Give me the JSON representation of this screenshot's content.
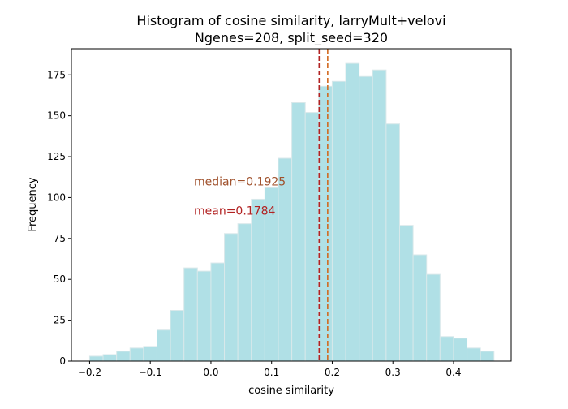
{
  "chart_data": {
    "type": "bar",
    "title": "Histogram of cosine similarity, larryMult+velovi",
    "subtitle": "Ngenes=208, split_seed=320",
    "xlabel": "cosine similarity",
    "ylabel": "Frequency",
    "xlim": [
      -0.23,
      0.495
    ],
    "ylim": [
      0,
      191
    ],
    "x_ticks": [
      -0.2,
      -0.1,
      0.0,
      0.1,
      0.2,
      0.3,
      0.4
    ],
    "x_tick_labels": [
      "−0.2",
      "−0.1",
      "0.0",
      "0.1",
      "0.2",
      "0.3",
      "0.4"
    ],
    "y_ticks": [
      0,
      25,
      50,
      75,
      100,
      125,
      150,
      175
    ],
    "y_tick_labels": [
      "0",
      "25",
      "50",
      "75",
      "100",
      "125",
      "150",
      "175"
    ],
    "grid": false,
    "bin_start": -0.2,
    "bin_width": 0.02222,
    "values": [
      3,
      4,
      6,
      8,
      9,
      19,
      31,
      57,
      55,
      60,
      78,
      84,
      99,
      106,
      124,
      158,
      152,
      168,
      171,
      182,
      174,
      178,
      145,
      83,
      65,
      53,
      15,
      14,
      8,
      6
    ],
    "bar_color": "#b0e0e6",
    "bar_edge_color": "#d8e8ea",
    "reference_lines": [
      {
        "label": "mean=0.1784",
        "x": 0.1784,
        "color": "#b22222",
        "style": "dashed"
      },
      {
        "label": "median=0.1925",
        "x": 0.1925,
        "color": "#d2691e",
        "style": "dashed"
      }
    ],
    "annotations": [
      {
        "text": "median=0.1925",
        "x": -0.028,
        "y": 110,
        "color": "#a0522d"
      },
      {
        "text": "mean=0.1784",
        "x": -0.028,
        "y": 92,
        "color": "#b22222"
      }
    ]
  }
}
